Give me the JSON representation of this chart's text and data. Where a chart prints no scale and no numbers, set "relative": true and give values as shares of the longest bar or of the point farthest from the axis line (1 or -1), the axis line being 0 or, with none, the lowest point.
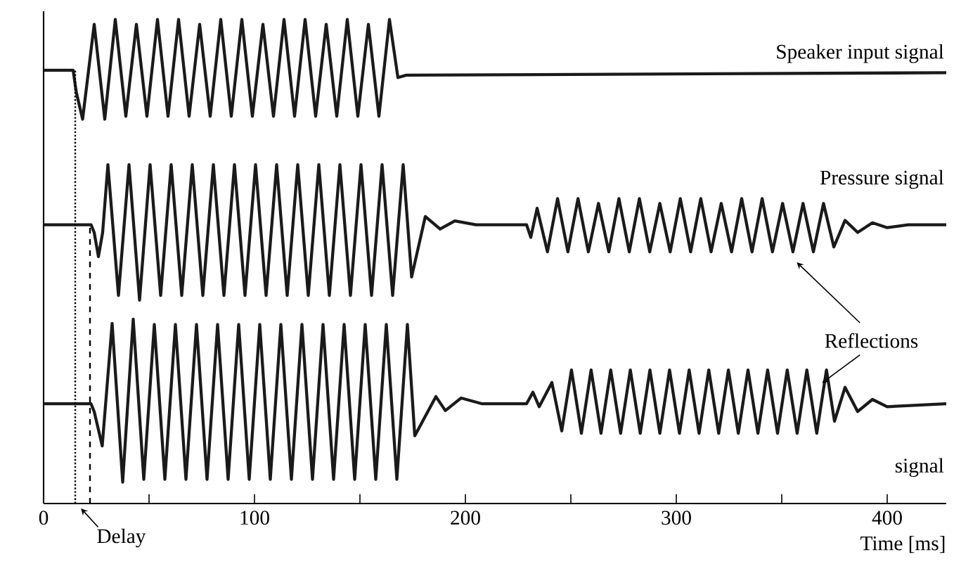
{
  "chart_data": {
    "type": "line",
    "relative": true,
    "xlabel": "Time [ms]",
    "xlim": [
      0,
      428
    ],
    "xticks": [
      0,
      {
        "value": 50,
        "label": null
      },
      100,
      {
        "value": 150,
        "label": null
      },
      200,
      {
        "value": 250,
        "label": null
      },
      300,
      {
        "value": 350,
        "label": null
      },
      400
    ],
    "series": [
      {
        "name": "Speaker input signal",
        "color": "#1a1a1a",
        "x": [
          0,
          14,
          15.5,
          18.5,
          24,
          29,
          34,
          39,
          44,
          49,
          54,
          59,
          64,
          69,
          74,
          79,
          84,
          89,
          94,
          99,
          104,
          109,
          114,
          119,
          124,
          129,
          134,
          139,
          144,
          149,
          154,
          159,
          164,
          168,
          172,
          428
        ],
        "values": [
          0.895,
          0.895,
          0.85,
          0.794,
          0.99,
          0.794,
          1.0,
          0.8,
          0.99,
          0.8,
          1.0,
          0.8,
          1.0,
          0.8,
          0.99,
          0.8,
          1.0,
          0.8,
          1.0,
          0.8,
          0.99,
          0.8,
          1.0,
          0.8,
          1.0,
          0.8,
          0.99,
          0.8,
          1.0,
          0.8,
          0.99,
          0.8,
          1.0,
          0.88,
          0.885,
          0.89
        ]
      },
      {
        "name": "Pressure signal",
        "color": "#1a1a1a",
        "x": [
          0,
          22.5,
          24,
          26,
          28,
          30.5,
          35.5,
          40.5,
          45.5,
          50.5,
          55.5,
          60.5,
          65.5,
          70.5,
          75.5,
          80.5,
          85.5,
          90.5,
          95.5,
          100.5,
          105.5,
          110.5,
          115.5,
          120.5,
          125.5,
          130.5,
          135.5,
          140.5,
          145.5,
          150.5,
          155.5,
          160.5,
          165.5,
          170.5,
          174.5,
          181,
          188,
          195,
          205,
          229,
          231,
          234,
          238.9,
          243.7,
          248.6,
          253.4,
          258.3,
          263.1,
          268,
          272.8,
          277.7,
          282.5,
          287.4,
          292.2,
          297.1,
          301.9,
          306.8,
          311.6,
          316.5,
          321.3,
          326.2,
          331,
          335.9,
          340.7,
          345.6,
          350.4,
          355.3,
          360.1,
          365,
          369.8,
          374.7,
          380,
          386,
          393,
          400,
          410,
          428
        ],
        "values": [
          0.576,
          0.576,
          0.56,
          0.51,
          0.56,
          0.7,
          0.43,
          0.7,
          0.42,
          0.7,
          0.43,
          0.7,
          0.43,
          0.7,
          0.43,
          0.7,
          0.43,
          0.7,
          0.43,
          0.7,
          0.43,
          0.7,
          0.43,
          0.7,
          0.43,
          0.7,
          0.43,
          0.7,
          0.43,
          0.7,
          0.43,
          0.7,
          0.43,
          0.7,
          0.468,
          0.593,
          0.567,
          0.584,
          0.576,
          0.576,
          0.55,
          0.61,
          0.52,
          0.63,
          0.52,
          0.63,
          0.52,
          0.62,
          0.52,
          0.63,
          0.52,
          0.63,
          0.52,
          0.62,
          0.52,
          0.63,
          0.52,
          0.63,
          0.52,
          0.62,
          0.52,
          0.63,
          0.52,
          0.63,
          0.52,
          0.62,
          0.52,
          0.62,
          0.52,
          0.62,
          0.53,
          0.585,
          0.56,
          0.58,
          0.57,
          0.576,
          0.576
        ]
      },
      {
        "name": "signal",
        "color": "#1a1a1a",
        "x": [
          0,
          22.5,
          24,
          27.8,
          32.5,
          37.5,
          42.5,
          47.5,
          52.5,
          57.5,
          62.5,
          67.5,
          72.5,
          77.5,
          82.5,
          87.5,
          92.5,
          97.5,
          102.5,
          107.5,
          112.5,
          117.5,
          122.5,
          127.5,
          132.5,
          137.5,
          142.5,
          147.5,
          152.5,
          157.5,
          162.5,
          167.5,
          172.5,
          176,
          186,
          190.5,
          198,
          208,
          229,
          232,
          235,
          241,
          245.7,
          250.3,
          255,
          259.6,
          264.3,
          268.9,
          273.6,
          278.2,
          282.9,
          287.5,
          292.2,
          296.8,
          301.5,
          306.1,
          310.8,
          315.4,
          320.1,
          324.7,
          329.4,
          334,
          338.7,
          343.3,
          348,
          352.6,
          357.3,
          361.9,
          366.6,
          371.2,
          375,
          380,
          386,
          393,
          400,
          428
        ],
        "values": [
          0.206,
          0.206,
          0.19,
          0.119,
          0.372,
          0.044,
          0.381,
          0.05,
          0.37,
          0.05,
          0.37,
          0.05,
          0.37,
          0.05,
          0.37,
          0.05,
          0.37,
          0.05,
          0.37,
          0.05,
          0.37,
          0.05,
          0.37,
          0.05,
          0.37,
          0.05,
          0.37,
          0.05,
          0.37,
          0.05,
          0.37,
          0.05,
          0.37,
          0.14,
          0.221,
          0.192,
          0.218,
          0.206,
          0.206,
          0.23,
          0.2,
          0.25,
          0.15,
          0.276,
          0.145,
          0.276,
          0.145,
          0.276,
          0.145,
          0.276,
          0.145,
          0.276,
          0.145,
          0.276,
          0.145,
          0.276,
          0.145,
          0.276,
          0.145,
          0.276,
          0.145,
          0.276,
          0.145,
          0.276,
          0.145,
          0.276,
          0.145,
          0.276,
          0.145,
          0.276,
          0.17,
          0.24,
          0.19,
          0.215,
          0.2,
          0.206
        ]
      }
    ],
    "ref_lines": [
      {
        "axis": "x",
        "value": 15,
        "line_style": "dotted"
      },
      {
        "axis": "x",
        "value": 22,
        "line_style": "dashed"
      }
    ],
    "annotations": [
      "Delay",
      "Reflections"
    ]
  }
}
